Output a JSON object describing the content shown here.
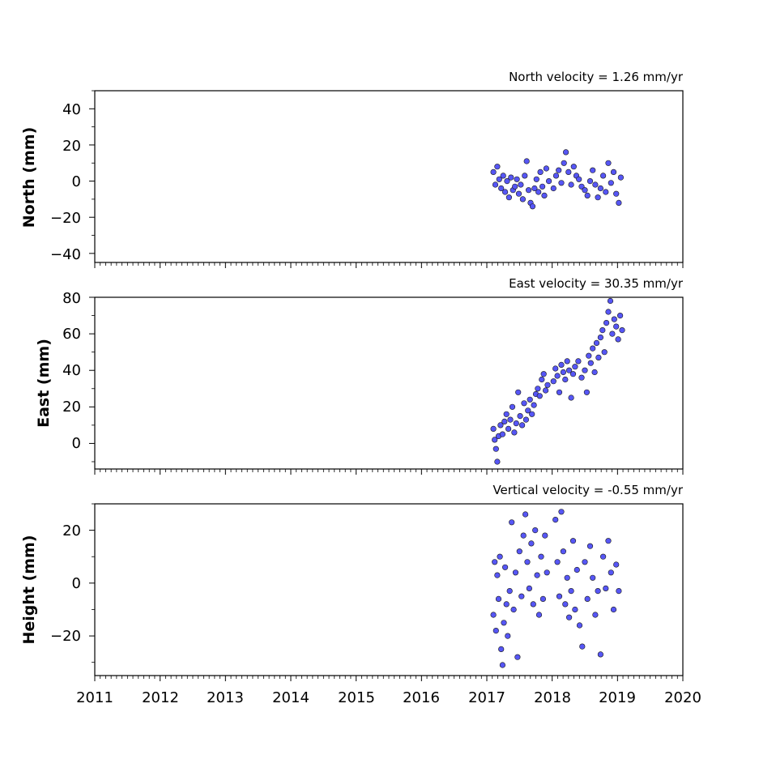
{
  "chart_data": [
    {
      "type": "scatter",
      "title": "North velocity = 1.26 mm/yr",
      "ylabel": "North (mm)",
      "xlim": [
        2011,
        2020
      ],
      "ylim": [
        -45,
        50
      ],
      "yticks": [
        40,
        20,
        0,
        -20,
        -40
      ],
      "ytick_labels": [
        "40",
        "20",
        "0",
        "−20",
        "−40"
      ],
      "x": [
        2017.1,
        2017.13,
        2017.16,
        2017.19,
        2017.22,
        2017.25,
        2017.28,
        2017.31,
        2017.34,
        2017.37,
        2017.4,
        2017.43,
        2017.46,
        2017.49,
        2017.52,
        2017.55,
        2017.58,
        2017.61,
        2017.64,
        2017.67,
        2017.7,
        2017.73,
        2017.76,
        2017.79,
        2017.82,
        2017.85,
        2017.88,
        2017.91,
        2017.95,
        2018.02,
        2018.06,
        2018.1,
        2018.14,
        2018.18,
        2018.21,
        2018.25,
        2018.29,
        2018.33,
        2018.37,
        2018.41,
        2018.45,
        2018.5,
        2018.54,
        2018.58,
        2018.62,
        2018.66,
        2018.7,
        2018.74,
        2018.78,
        2018.82,
        2018.86,
        2018.9,
        2018.94,
        2018.98,
        2019.02,
        2019.05
      ],
      "values": [
        5,
        -2,
        8,
        1,
        -4,
        3,
        -6,
        0,
        -9,
        2,
        -5,
        -3,
        1,
        -7,
        -2,
        -10,
        3,
        11,
        -5,
        -12,
        -14,
        -4,
        1,
        -6,
        5,
        -3,
        -8,
        7,
        0,
        -4,
        3,
        6,
        -1,
        10,
        16,
        5,
        -2,
        8,
        3,
        1,
        -3,
        -5,
        -8,
        0,
        6,
        -2,
        -9,
        -4,
        3,
        -6,
        10,
        -1,
        5,
        -7,
        -12,
        2
      ]
    },
    {
      "type": "scatter",
      "title": "East velocity = 30.35 mm/yr",
      "ylabel": "East (mm)",
      "xlim": [
        2011,
        2020
      ],
      "ylim": [
        -14,
        80
      ],
      "yticks": [
        80,
        60,
        40,
        20,
        0
      ],
      "ytick_labels": [
        "80",
        "60",
        "40",
        "20",
        "0"
      ],
      "x": [
        2017.1,
        2017.12,
        2017.14,
        2017.16,
        2017.18,
        2017.21,
        2017.24,
        2017.27,
        2017.3,
        2017.33,
        2017.36,
        2017.39,
        2017.42,
        2017.45,
        2017.48,
        2017.51,
        2017.54,
        2017.57,
        2017.6,
        2017.63,
        2017.66,
        2017.69,
        2017.72,
        2017.75,
        2017.78,
        2017.81,
        2017.84,
        2017.87,
        2017.9,
        2017.93,
        2018.02,
        2018.05,
        2018.08,
        2018.11,
        2018.14,
        2018.17,
        2018.2,
        2018.23,
        2018.26,
        2018.29,
        2018.32,
        2018.35,
        2018.4,
        2018.45,
        2018.5,
        2018.53,
        2018.56,
        2018.59,
        2018.62,
        2018.65,
        2018.68,
        2018.71,
        2018.74,
        2018.77,
        2018.8,
        2018.83,
        2018.86,
        2018.89,
        2018.92,
        2018.95,
        2018.98,
        2019.01,
        2019.04,
        2019.07
      ],
      "values": [
        8,
        2,
        -3,
        -10,
        4,
        10,
        5,
        12,
        16,
        8,
        13,
        20,
        6,
        11,
        28,
        15,
        10,
        22,
        13,
        18,
        24,
        16,
        21,
        27,
        30,
        26,
        35,
        38,
        29,
        32,
        34,
        41,
        37,
        28,
        43,
        39,
        35,
        45,
        40,
        25,
        38,
        42,
        45,
        36,
        40,
        28,
        48,
        44,
        52,
        39,
        55,
        47,
        58,
        62,
        50,
        66,
        72,
        78,
        60,
        68,
        64,
        57,
        70,
        62
      ]
    },
    {
      "type": "scatter",
      "title": "Vertical velocity = -0.55 mm/yr",
      "ylabel": "Height (mm)",
      "xlim": [
        2011,
        2020
      ],
      "ylim": [
        -35,
        30
      ],
      "yticks": [
        20,
        0,
        -20
      ],
      "ytick_labels": [
        "20",
        "0",
        "−20"
      ],
      "x": [
        2017.1,
        2017.12,
        2017.14,
        2017.16,
        2017.18,
        2017.2,
        2017.22,
        2017.24,
        2017.26,
        2017.28,
        2017.3,
        2017.32,
        2017.35,
        2017.38,
        2017.41,
        2017.44,
        2017.47,
        2017.5,
        2017.53,
        2017.56,
        2017.59,
        2017.62,
        2017.65,
        2017.68,
        2017.71,
        2017.74,
        2017.77,
        2017.8,
        2017.83,
        2017.86,
        2017.89,
        2017.92,
        2018.05,
        2018.08,
        2018.11,
        2018.14,
        2018.17,
        2018.2,
        2018.23,
        2018.26,
        2018.29,
        2018.32,
        2018.35,
        2018.38,
        2018.42,
        2018.46,
        2018.5,
        2018.54,
        2018.58,
        2018.62,
        2018.66,
        2018.7,
        2018.74,
        2018.78,
        2018.82,
        2018.86,
        2018.9,
        2018.94,
        2018.98,
        2019.02
      ],
      "values": [
        -12,
        8,
        -18,
        3,
        -6,
        10,
        -25,
        -31,
        -15,
        6,
        -8,
        -20,
        -3,
        23,
        -10,
        4,
        -28,
        12,
        -5,
        18,
        26,
        8,
        -2,
        15,
        -8,
        20,
        3,
        -12,
        10,
        -6,
        18,
        4,
        24,
        8,
        -5,
        27,
        12,
        -8,
        2,
        -13,
        -3,
        16,
        -10,
        5,
        -16,
        -24,
        8,
        -6,
        14,
        2,
        -12,
        -3,
        -27,
        10,
        -2,
        16,
        4,
        -10,
        7,
        -3
      ]
    }
  ],
  "xticks": [
    2011,
    2012,
    2013,
    2014,
    2015,
    2016,
    2017,
    2018,
    2019,
    2020
  ],
  "xtick_labels": [
    "2011",
    "2012",
    "2013",
    "2014",
    "2015",
    "2016",
    "2017",
    "2018",
    "2019",
    "2020"
  ],
  "colors": {
    "marker_fill": "#5656f5",
    "marker_edge": "#1a1a1a",
    "axes": "#000000"
  }
}
